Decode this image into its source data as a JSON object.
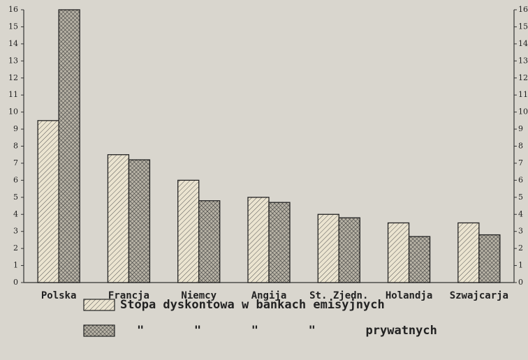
{
  "chart_data": {
    "type": "bar",
    "categories": [
      "Polska",
      "Francja",
      "Niemcy",
      "Angija",
      "St. Zjedn.",
      "Holandja",
      "Szwajcarja"
    ],
    "series": [
      {
        "name": "Stopa dyskontowa w bankach emisyjnych",
        "color": "#ebe4d0",
        "values": [
          9.5,
          7.5,
          6,
          5,
          4,
          3.5,
          3.5
        ]
      },
      {
        "name": "\"       \"       \"       \"       prywatnych",
        "color": "#9d988c",
        "values": [
          16,
          7.2,
          4.8,
          4.7,
          3.8,
          2.7,
          2.8
        ]
      }
    ],
    "ylim": [
      0,
      16
    ],
    "yticks": [
      0,
      1,
      2,
      3,
      4,
      5,
      6,
      7,
      8,
      9,
      10,
      11,
      12,
      13,
      14,
      15,
      16
    ],
    "grid": false
  }
}
